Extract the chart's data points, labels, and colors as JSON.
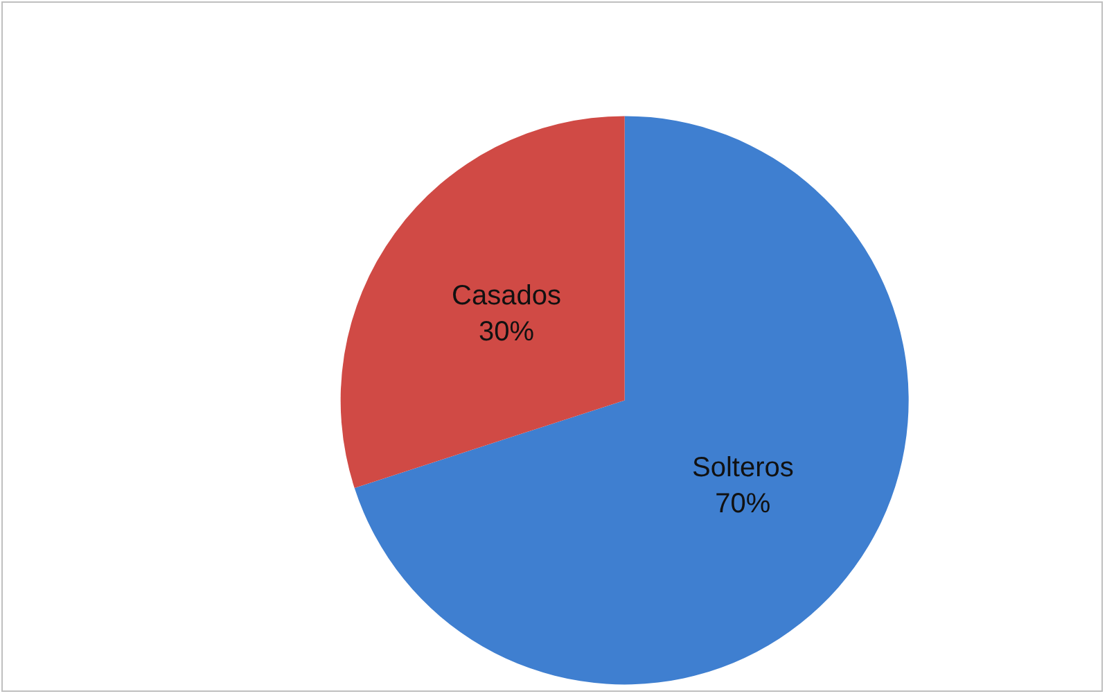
{
  "chart_data": {
    "type": "pie",
    "categories": [
      "Solteros",
      "Casados"
    ],
    "values": [
      70,
      30
    ],
    "colors": [
      "#3f7fd0",
      "#d04a45"
    ],
    "legend": false,
    "data_labels": true,
    "value_labels": [
      "70%",
      "30%"
    ]
  }
}
